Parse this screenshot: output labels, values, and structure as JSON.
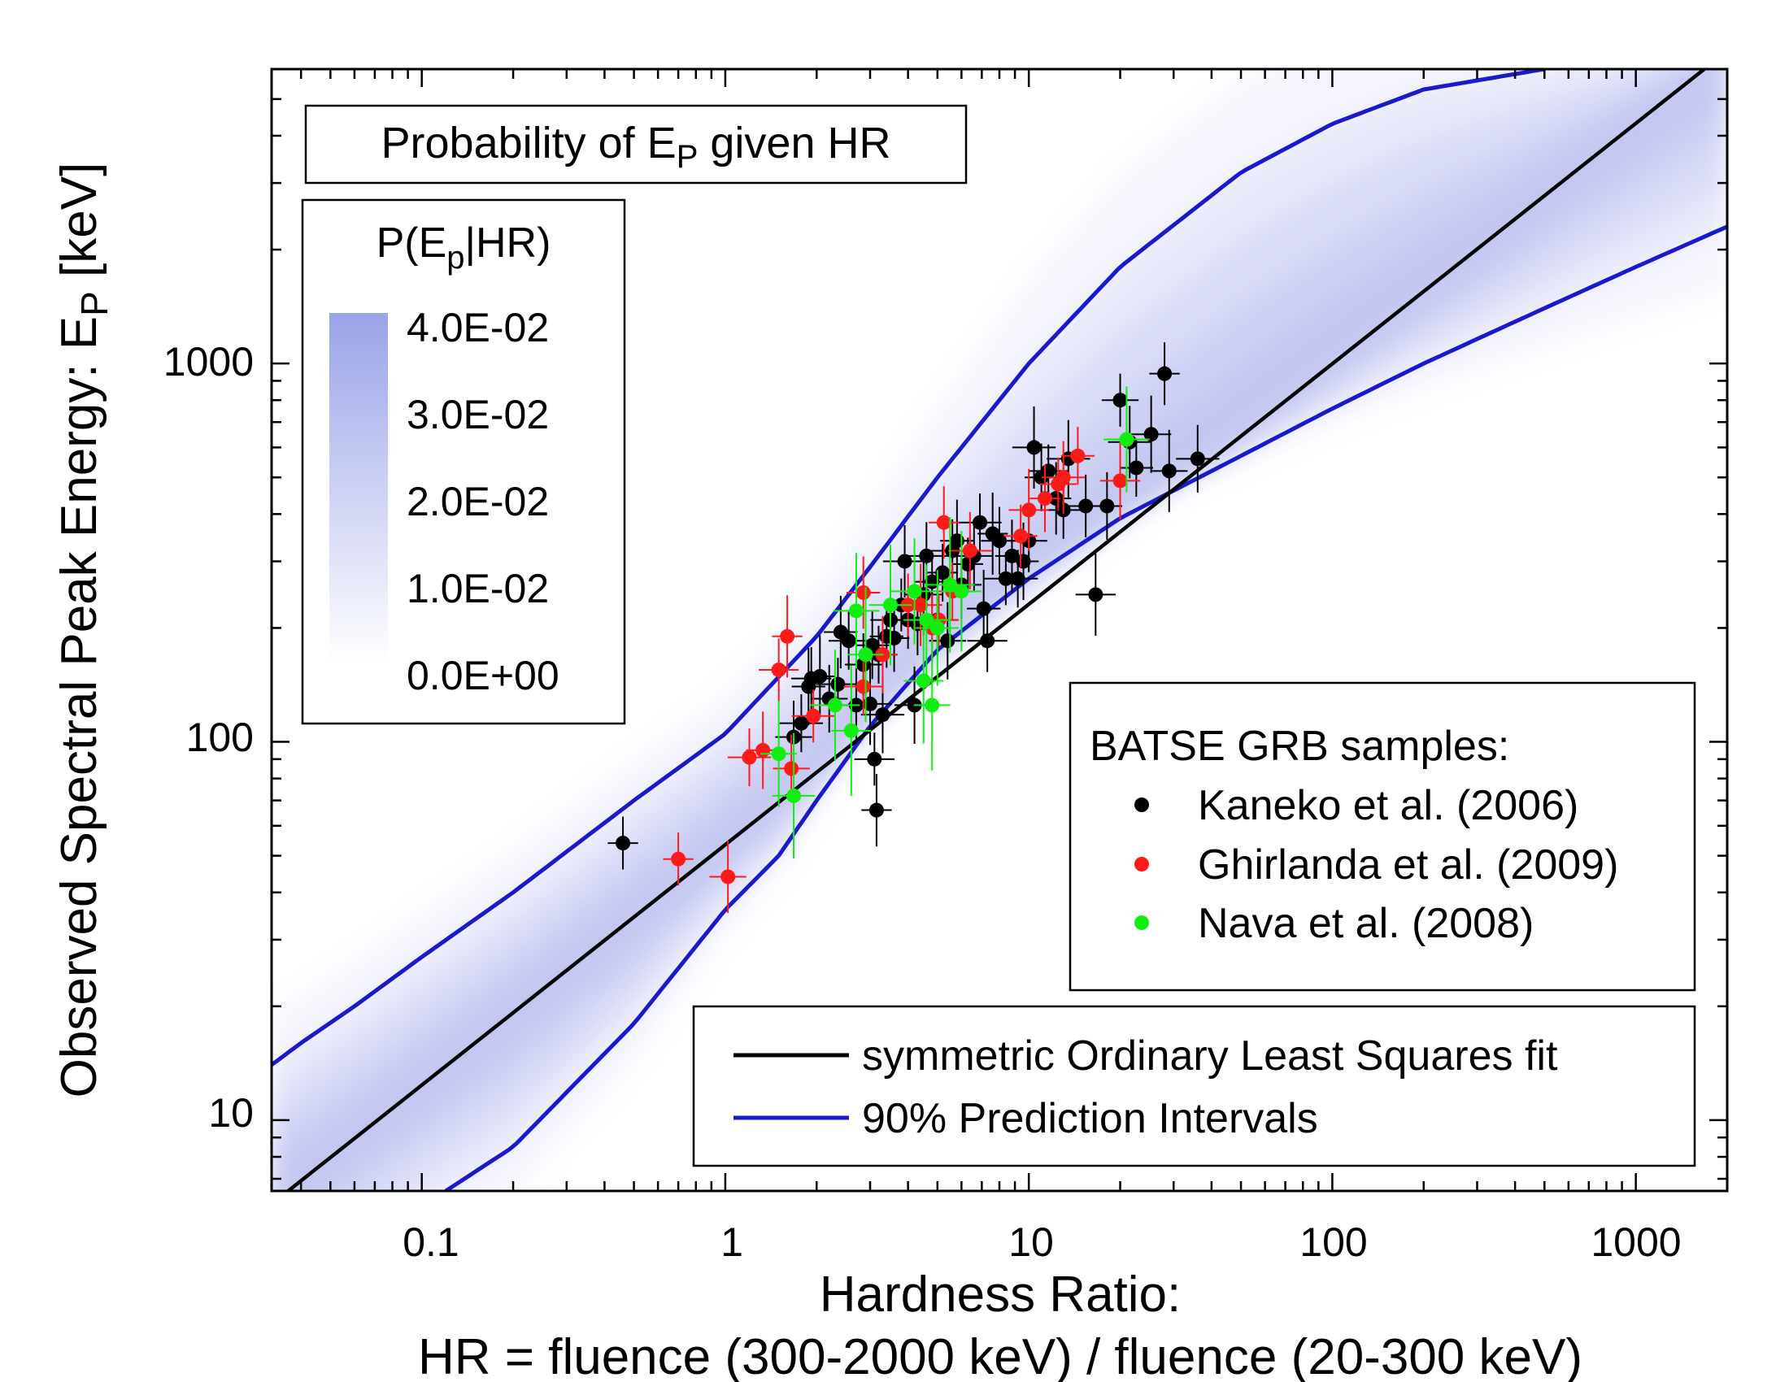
{
  "chart_data": {
    "type": "scatter",
    "title": "Probability of E_P given HR",
    "title_parts": {
      "pre": "Probability of E",
      "sub": "P",
      "post": " given HR"
    },
    "xlabel": "Hardness Ratio:",
    "xlabel_line2": "HR = fluence (300-2000 keV) / fluence (20-300 keV)",
    "ylabel": "Observed Spectral Peak Energy: E_P [keV]",
    "ylabel_parts": {
      "pre": "Observed Spectral Peak Energy: E",
      "sub": "P",
      "post": " [keV]"
    },
    "x_scale": "log",
    "y_scale": "log",
    "xlim": [
      0.032,
      2000
    ],
    "ylim": [
      6.5,
      6000
    ],
    "x_ticks": [
      0.1,
      1,
      10,
      100,
      1000
    ],
    "x_tick_labels": [
      "0.1",
      "1",
      "10",
      "100",
      "1000"
    ],
    "y_ticks": [
      10,
      100,
      1000
    ],
    "y_tick_labels": [
      "10",
      "100",
      "1000"
    ],
    "colorbar": {
      "title": "P(E_p|HR)",
      "title_parts": {
        "pre": "P(E",
        "sub": "p",
        "post": "|HR)"
      },
      "labels": [
        "4.0E-02",
        "3.0E-02",
        "2.0E-02",
        "1.0E-02",
        "0.0E+00"
      ],
      "color_max": "#9aa3e8",
      "color_min": "#ffffff"
    },
    "samples_legend_title": "BATSE GRB samples:",
    "fit": {
      "name": "symmetric Ordinary Least Squares fit",
      "color": "#000000",
      "x": [
        0.032,
        2000
      ],
      "y": [
        6.0,
        6700
      ]
    },
    "prediction_intervals": {
      "name": "90% Prediction Intervals",
      "color": "#1a1acc",
      "upper": {
        "x": [
          0.032,
          0.04,
          0.06,
          0.1,
          0.2,
          0.5,
          1,
          2,
          3,
          5,
          10,
          20,
          50,
          100,
          200,
          500
        ],
        "y": [
          14,
          16,
          20,
          27,
          40,
          70,
          105,
          190,
          290,
          500,
          1000,
          1800,
          3200,
          4300,
          5300,
          6000
        ]
      },
      "lower": {
        "x": [
          0.12,
          0.2,
          0.5,
          1,
          1.5,
          2,
          3,
          5,
          10,
          20,
          50,
          100,
          200,
          500,
          1000,
          2000
        ],
        "y": [
          6.5,
          8.5,
          18,
          36,
          50,
          70,
          110,
          175,
          270,
          390,
          570,
          760,
          1000,
          1400,
          1800,
          2300
        ]
      }
    },
    "series": [
      {
        "name": "Kaneko et al. (2006)",
        "color": "#000000",
        "points": [
          [
            0.46,
            54
          ],
          [
            1.68,
            103
          ],
          [
            1.78,
            112
          ],
          [
            1.88,
            140
          ],
          [
            1.92,
            147
          ],
          [
            2.05,
            149
          ],
          [
            2.2,
            130
          ],
          [
            2.35,
            142
          ],
          [
            2.4,
            195
          ],
          [
            2.55,
            185
          ],
          [
            2.7,
            125
          ],
          [
            2.85,
            160
          ],
          [
            3.0,
            126
          ],
          [
            3.05,
            180
          ],
          [
            3.1,
            90
          ],
          [
            3.15,
            66
          ],
          [
            3.2,
            170
          ],
          [
            3.3,
            118
          ],
          [
            3.4,
            190
          ],
          [
            3.5,
            210
          ],
          [
            3.6,
            188
          ],
          [
            3.8,
            230
          ],
          [
            3.9,
            300
          ],
          [
            4.0,
            210
          ],
          [
            4.2,
            125
          ],
          [
            4.3,
            205
          ],
          [
            4.5,
            245
          ],
          [
            4.6,
            310
          ],
          [
            4.8,
            265
          ],
          [
            5.0,
            210
          ],
          [
            5.2,
            280
          ],
          [
            5.4,
            185
          ],
          [
            5.6,
            320
          ],
          [
            5.8,
            340
          ],
          [
            6.0,
            260
          ],
          [
            6.3,
            295
          ],
          [
            6.6,
            310
          ],
          [
            6.9,
            380
          ],
          [
            7.1,
            225
          ],
          [
            7.3,
            185
          ],
          [
            7.6,
            355
          ],
          [
            8.0,
            340
          ],
          [
            8.4,
            270
          ],
          [
            8.8,
            310
          ],
          [
            9.2,
            270
          ],
          [
            9.6,
            300
          ],
          [
            10.0,
            340
          ],
          [
            10.4,
            600
          ],
          [
            11.0,
            500
          ],
          [
            11.6,
            520
          ],
          [
            12.3,
            440
          ],
          [
            13.0,
            410
          ],
          [
            13.5,
            560
          ],
          [
            15.4,
            420
          ],
          [
            16.6,
            245
          ],
          [
            18.1,
            420
          ],
          [
            20.0,
            800
          ],
          [
            21.5,
            620
          ],
          [
            22.6,
            530
          ],
          [
            25.3,
            650
          ],
          [
            28.0,
            940
          ],
          [
            29.0,
            520
          ],
          [
            36.0,
            560
          ]
        ]
      },
      {
        "name": "Ghirlanda et al. (2009)",
        "color": "#ff1a1a",
        "points": [
          [
            0.7,
            49
          ],
          [
            1.02,
            44
          ],
          [
            1.2,
            91
          ],
          [
            1.33,
            95
          ],
          [
            1.5,
            155
          ],
          [
            1.6,
            190
          ],
          [
            1.65,
            85
          ],
          [
            1.95,
            117
          ],
          [
            2.85,
            248
          ],
          [
            2.85,
            140
          ],
          [
            3.3,
            170
          ],
          [
            4.0,
            230
          ],
          [
            4.4,
            230
          ],
          [
            4.8,
            200
          ],
          [
            5.05,
            210
          ],
          [
            5.25,
            380
          ],
          [
            5.6,
            250
          ],
          [
            6.4,
            320
          ],
          [
            9.4,
            350
          ],
          [
            10.0,
            410
          ],
          [
            11.3,
            440
          ],
          [
            12.5,
            480
          ],
          [
            13.0,
            500
          ],
          [
            14.5,
            570
          ],
          [
            20.0,
            490
          ]
        ]
      },
      {
        "name": "Nava et al. (2008)",
        "color": "#11ee11",
        "points": [
          [
            1.5,
            93
          ],
          [
            1.68,
            72
          ],
          [
            2.3,
            125
          ],
          [
            2.6,
            107
          ],
          [
            2.7,
            222
          ],
          [
            2.9,
            170
          ],
          [
            3.5,
            230
          ],
          [
            4.2,
            250
          ],
          [
            4.5,
            145
          ],
          [
            4.6,
            210
          ],
          [
            4.8,
            125
          ],
          [
            5.0,
            200
          ],
          [
            5.5,
            260
          ],
          [
            6.0,
            250
          ],
          [
            21.0,
            630
          ]
        ]
      }
    ]
  }
}
